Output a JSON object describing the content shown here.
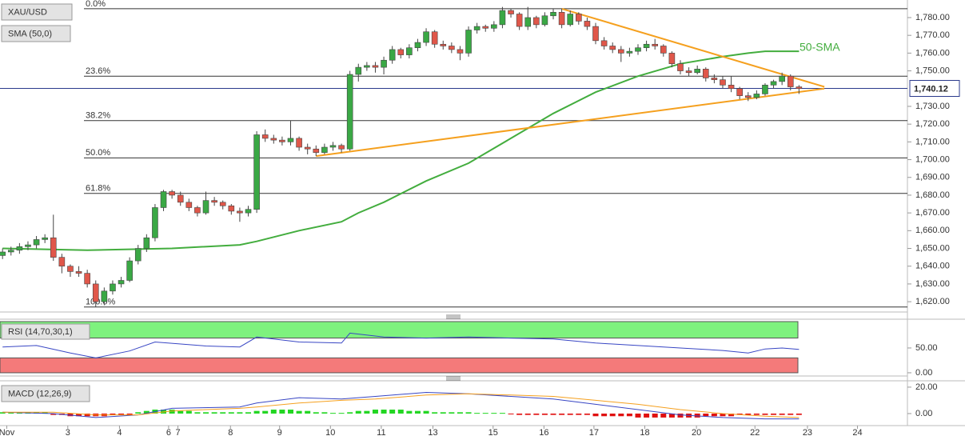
{
  "chart_data": {
    "type": "candlestick",
    "title": "XAU/USD",
    "indicator_label": "SMA (50,0)",
    "xlim": [
      -0.3,
      106.8
    ],
    "xticks": [
      {
        "value": 0.5,
        "label": "Nov"
      },
      {
        "value": 7.7,
        "label": "3"
      },
      {
        "value": 13.8,
        "label": "4"
      },
      {
        "value": 19.6,
        "label": "6"
      },
      {
        "value": 20.7,
        "label": "7"
      },
      {
        "value": 26.9,
        "label": "8"
      },
      {
        "value": 32.7,
        "label": "9"
      },
      {
        "value": 38.7,
        "label": "10"
      },
      {
        "value": 44.7,
        "label": "11"
      },
      {
        "value": 50.8,
        "label": "13"
      },
      {
        "value": 57.9,
        "label": "15"
      },
      {
        "value": 63.9,
        "label": "16"
      },
      {
        "value": 69.8,
        "label": "17"
      },
      {
        "value": 75.8,
        "label": "18"
      },
      {
        "value": 81.9,
        "label": "20"
      },
      {
        "value": 88.8,
        "label": "22"
      },
      {
        "value": 95,
        "label": "23"
      },
      {
        "value": 100.9,
        "label": "24"
      }
    ],
    "ylim": [
      1614.2,
      1789.9
    ],
    "yticks": [
      {
        "value": 1620,
        "label": "1,620.00"
      },
      {
        "value": 1630,
        "label": "1,630.00"
      },
      {
        "value": 1640,
        "label": "1,640.00"
      },
      {
        "value": 1650,
        "label": "1,650.00"
      },
      {
        "value": 1660,
        "label": "1,660.00"
      },
      {
        "value": 1670,
        "label": "1,670.00"
      },
      {
        "value": 1680,
        "label": "1,680.00"
      },
      {
        "value": 1690,
        "label": "1,690.00"
      },
      {
        "value": 1700,
        "label": "1,700.00"
      },
      {
        "value": 1710,
        "label": "1,710.00"
      },
      {
        "value": 1720,
        "label": "1,720.00"
      },
      {
        "value": 1730,
        "label": "1,730.00"
      },
      {
        "value": 1750,
        "label": "1,750.00"
      },
      {
        "value": 1760,
        "label": "1,760.00"
      },
      {
        "value": 1770,
        "label": "1,770.00"
      },
      {
        "value": 1780,
        "label": "1,780.00"
      }
    ],
    "up_color": "#3aa845",
    "down_color": "#e0574a",
    "candles": [
      [
        1646,
        1650,
        1644,
        1648
      ],
      [
        1648,
        1651,
        1646,
        1649
      ],
      [
        1649,
        1653,
        1647,
        1651
      ],
      [
        1651,
        1654,
        1649,
        1652
      ],
      [
        1652,
        1657,
        1650,
        1655
      ],
      [
        1655,
        1658,
        1653,
        1656
      ],
      [
        1656,
        1669,
        1643,
        1645
      ],
      [
        1645,
        1647,
        1636,
        1640
      ],
      [
        1640,
        1641,
        1634,
        1637
      ],
      [
        1637,
        1640,
        1634,
        1636
      ],
      [
        1636,
        1638,
        1628,
        1630
      ],
      [
        1630,
        1632,
        1617,
        1620
      ],
      [
        1620,
        1628,
        1618,
        1626
      ],
      [
        1626,
        1632,
        1624,
        1630
      ],
      [
        1630,
        1634,
        1628,
        1632
      ],
      [
        1632,
        1645,
        1631,
        1643
      ],
      [
        1643,
        1652,
        1641,
        1650
      ],
      [
        1650,
        1658,
        1648,
        1656
      ],
      [
        1656,
        1675,
        1654,
        1673
      ],
      [
        1673,
        1683,
        1671,
        1682
      ],
      [
        1682,
        1683,
        1678,
        1680
      ],
      [
        1680,
        1682,
        1674,
        1676
      ],
      [
        1676,
        1678,
        1671,
        1673
      ],
      [
        1673,
        1674,
        1668,
        1670
      ],
      [
        1670,
        1682,
        1669,
        1677
      ],
      [
        1677,
        1679,
        1674,
        1676
      ],
      [
        1676,
        1677,
        1672,
        1674
      ],
      [
        1674,
        1675,
        1669,
        1671
      ],
      [
        1671,
        1673,
        1665,
        1670
      ],
      [
        1670,
        1674,
        1668,
        1672
      ],
      [
        1672,
        1716,
        1670,
        1714
      ],
      [
        1714,
        1717,
        1710,
        1712
      ],
      [
        1712,
        1714,
        1709,
        1711
      ],
      [
        1711,
        1713,
        1708,
        1710
      ],
      [
        1710,
        1722,
        1708,
        1712
      ],
      [
        1712,
        1713,
        1705,
        1707
      ],
      [
        1707,
        1709,
        1703,
        1706
      ],
      [
        1706,
        1708,
        1702,
        1704
      ],
      [
        1704,
        1709,
        1703,
        1707
      ],
      [
        1707,
        1710,
        1705,
        1708
      ],
      [
        1708,
        1709,
        1704,
        1706
      ],
      [
        1706,
        1750,
        1705,
        1748
      ],
      [
        1748,
        1754,
        1744,
        1752
      ],
      [
        1752,
        1755,
        1750,
        1753
      ],
      [
        1753,
        1755,
        1749,
        1752
      ],
      [
        1752,
        1758,
        1748,
        1756
      ],
      [
        1756,
        1764,
        1754,
        1762
      ],
      [
        1762,
        1763,
        1757,
        1759
      ],
      [
        1759,
        1765,
        1757,
        1763
      ],
      [
        1763,
        1768,
        1761,
        1766
      ],
      [
        1766,
        1774,
        1764,
        1772
      ],
      [
        1772,
        1773,
        1763,
        1765
      ],
      [
        1765,
        1767,
        1762,
        1764
      ],
      [
        1764,
        1766,
        1760,
        1762
      ],
      [
        1762,
        1764,
        1756,
        1760
      ],
      [
        1760,
        1775,
        1758,
        1773
      ],
      [
        1773,
        1777,
        1771,
        1775
      ],
      [
        1775,
        1776,
        1772,
        1774
      ],
      [
        1774,
        1778,
        1772,
        1776
      ],
      [
        1776,
        1786,
        1774,
        1784
      ],
      [
        1784,
        1785,
        1780,
        1782
      ],
      [
        1782,
        1783,
        1773,
        1775
      ],
      [
        1775,
        1786,
        1773,
        1780
      ],
      [
        1780,
        1781,
        1774,
        1776
      ],
      [
        1776,
        1783,
        1775,
        1781
      ],
      [
        1781,
        1785,
        1779,
        1783
      ],
      [
        1783,
        1785,
        1774,
        1776
      ],
      [
        1776,
        1784,
        1775,
        1782
      ],
      [
        1782,
        1783,
        1776,
        1778
      ],
      [
        1778,
        1780,
        1773,
        1775
      ],
      [
        1775,
        1777,
        1765,
        1767
      ],
      [
        1767,
        1769,
        1762,
        1764
      ],
      [
        1764,
        1766,
        1760,
        1762
      ],
      [
        1762,
        1764,
        1755,
        1760
      ],
      [
        1760,
        1763,
        1758,
        1761
      ],
      [
        1761,
        1765,
        1759,
        1763
      ],
      [
        1763,
        1767,
        1761,
        1765
      ],
      [
        1765,
        1768,
        1762,
        1764
      ],
      [
        1764,
        1765,
        1758,
        1760
      ],
      [
        1760,
        1761,
        1752,
        1754
      ],
      [
        1754,
        1756,
        1748,
        1750
      ],
      [
        1750,
        1752,
        1747,
        1749
      ],
      [
        1749,
        1753,
        1748,
        1751
      ],
      [
        1751,
        1752,
        1744,
        1746
      ],
      [
        1746,
        1748,
        1743,
        1745
      ],
      [
        1745,
        1747,
        1740,
        1742
      ],
      [
        1742,
        1747,
        1738,
        1740
      ],
      [
        1740,
        1741,
        1734,
        1736
      ],
      [
        1736,
        1738,
        1733,
        1735
      ],
      [
        1735,
        1739,
        1734,
        1737
      ],
      [
        1737,
        1743,
        1736,
        1742
      ],
      [
        1742,
        1745,
        1740,
        1744
      ],
      [
        1744,
        1749,
        1742,
        1747
      ],
      [
        1747,
        1748,
        1739,
        1741
      ],
      [
        1741,
        1742,
        1737,
        1740
      ]
    ],
    "sma": {
      "name": "50-SMA",
      "color": "#43ad3e",
      "x": [
        0,
        10,
        20,
        28,
        30,
        35,
        40,
        42,
        45,
        50,
        55,
        60,
        65,
        70,
        75,
        80,
        85,
        88,
        90,
        94
      ],
      "values": [
        1650,
        1649,
        1650,
        1652,
        1654,
        1660,
        1665,
        1670,
        1676,
        1688,
        1698,
        1712,
        1726,
        1738,
        1747,
        1754,
        1758,
        1760,
        1761,
        1761
      ]
    },
    "trendlines": [
      {
        "color": "#f5a01e",
        "x": [
          66,
          97
        ],
        "values": [
          1785,
          1741
        ]
      },
      {
        "color": "#f5a01e",
        "x": [
          37,
          97
        ],
        "values": [
          1702,
          1740
        ]
      }
    ],
    "fib_levels": [
      {
        "value": 1785,
        "label": "0.0%"
      },
      {
        "value": 1747,
        "label": "23.6%"
      },
      {
        "value": 1722,
        "label": "38.2%"
      },
      {
        "value": 1701,
        "label": "50.0%"
      },
      {
        "value": 1681,
        "label": "61.8%"
      },
      {
        "value": 1617,
        "label": "100.0%"
      }
    ],
    "last_price": {
      "value": 1740.12,
      "label": "1,740.12"
    },
    "rsi": {
      "label": "RSI (14,70,30,1)",
      "color": "#3846c4",
      "ylim": [
        -6.5,
        108
      ],
      "yticks": [
        {
          "value": 50,
          "label": "50.00"
        },
        {
          "value": 0,
          "label": "0.00"
        }
      ],
      "upper": 70,
      "lower": 30,
      "x": [
        0,
        4,
        8,
        11,
        15,
        18,
        24,
        28,
        30,
        35,
        40,
        41,
        45,
        50,
        55,
        60,
        65,
        70,
        75,
        80,
        85,
        88,
        90,
        92,
        94
      ],
      "values": [
        52,
        55,
        40,
        30,
        44,
        62,
        54,
        52,
        72,
        62,
        60,
        80,
        72,
        70,
        72,
        70,
        68,
        60,
        55,
        50,
        45,
        40,
        48,
        50,
        47
      ]
    },
    "macd": {
      "label": "MACD (12,26,9)",
      "ylim": [
        -9.1,
        24.8
      ],
      "yticks": [
        {
          "value": 20,
          "label": "20.00"
        },
        {
          "value": 0,
          "label": "0.00"
        }
      ],
      "macd_color": "#3846c4",
      "signal_color": "#f5a01e",
      "x": [
        0,
        6,
        11,
        16,
        20,
        28,
        30,
        35,
        40,
        44,
        50,
        55,
        60,
        65,
        70,
        75,
        80,
        85,
        90,
        94
      ],
      "macd_values": [
        1,
        0,
        -3,
        -1,
        4,
        5,
        8,
        12,
        11,
        13,
        16,
        15,
        13,
        11,
        7,
        3,
        -1,
        -3,
        -4,
        -4
      ],
      "signal_values": [
        1,
        1,
        -1,
        -1,
        2,
        4,
        5,
        8,
        10,
        11,
        14,
        15,
        14,
        13,
        10,
        7,
        3,
        0,
        -2,
        -3
      ],
      "histogram": [
        1,
        1,
        1,
        1,
        1,
        1,
        -1,
        -1,
        -2,
        -2,
        -2,
        -2,
        -2,
        -1,
        -1,
        -1,
        1,
        2,
        3,
        3,
        3,
        2,
        2,
        1,
        1,
        1,
        1,
        1,
        1,
        1,
        2,
        2,
        3,
        3,
        3,
        2,
        2,
        1,
        1,
        0.5,
        0.5,
        1,
        2,
        2,
        3,
        3,
        3,
        3,
        2,
        2,
        2,
        1,
        1,
        1,
        1,
        1,
        0.5,
        0.5,
        0.5,
        0.5,
        -0.5,
        -1,
        -1,
        -1,
        -1,
        -1,
        -1,
        -1,
        -1,
        -1,
        -2,
        -2,
        -2,
        -2,
        -2,
        -3,
        -3,
        -3,
        -3,
        -3,
        -3,
        -3,
        -3,
        -2,
        -2,
        -2,
        -2,
        -1,
        -1,
        -1,
        -1,
        -1,
        -1,
        -1,
        -1
      ]
    }
  }
}
